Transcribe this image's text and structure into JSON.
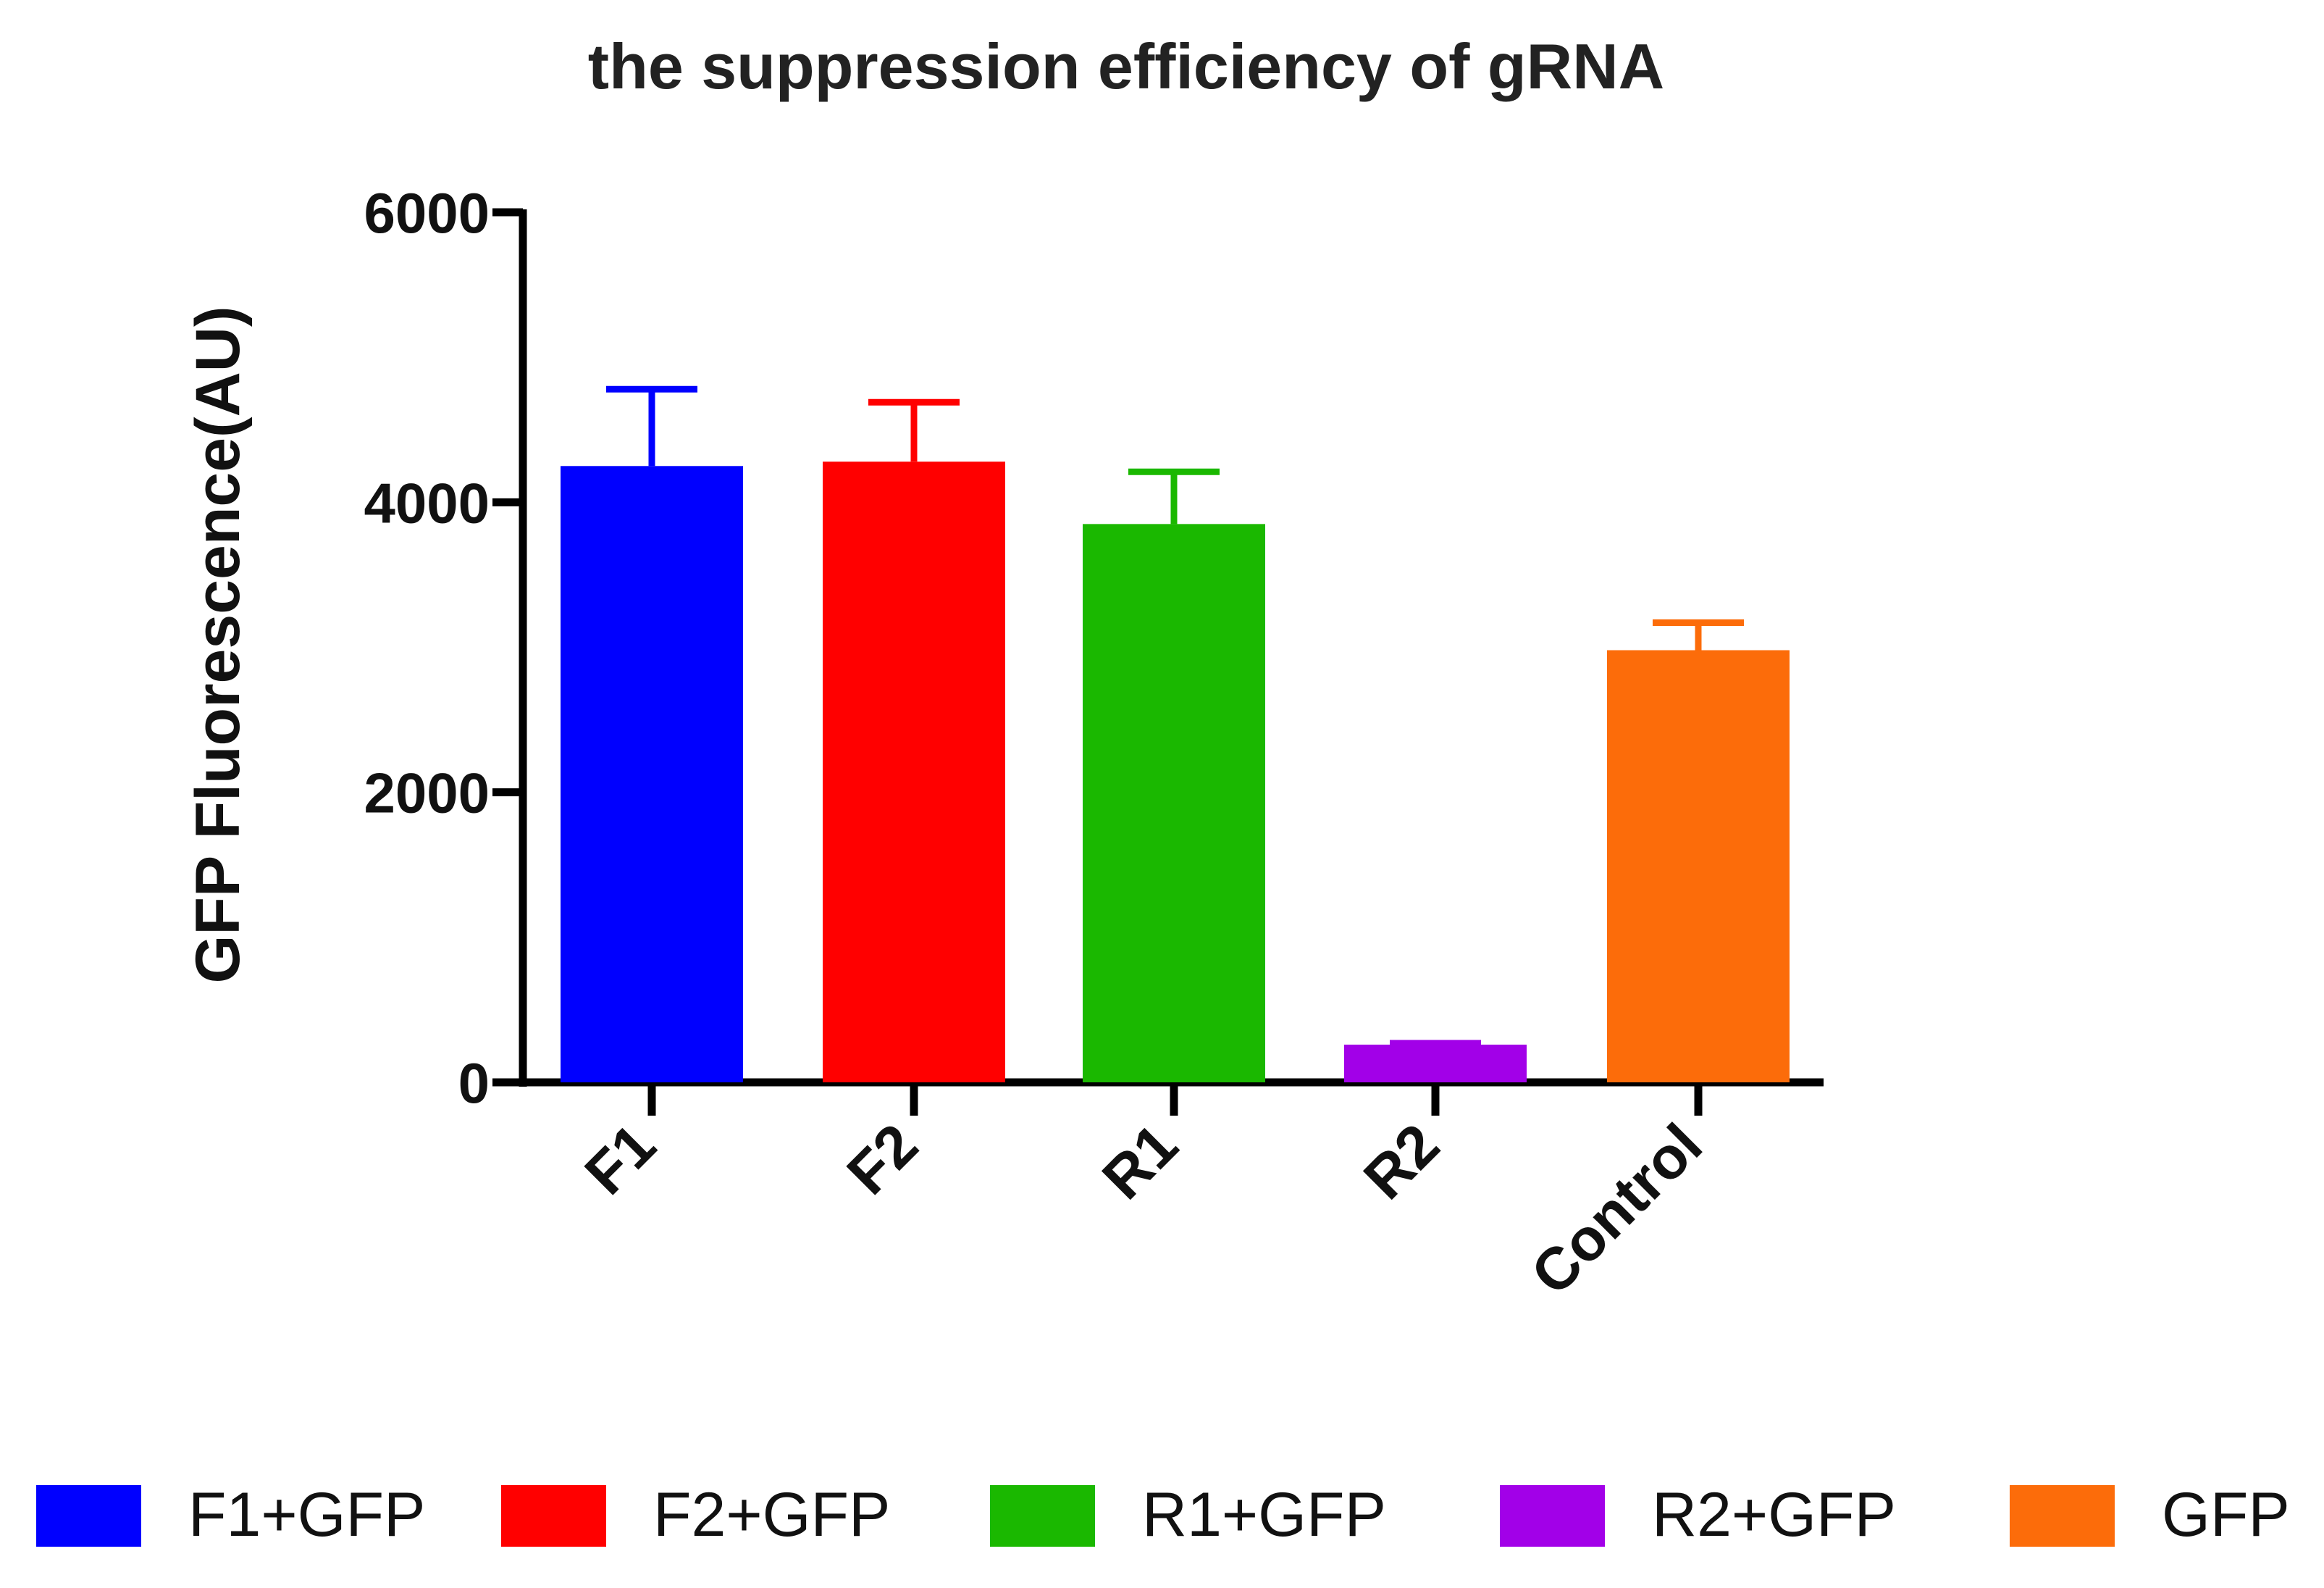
{
  "chart_data": {
    "type": "bar",
    "title": "the suppression efficiency of gRNA",
    "ylabel": "GFP Fluorescence(AU)",
    "xlabel": "",
    "ylim": [
      0,
      6000
    ],
    "yticks": [
      0,
      2000,
      4000,
      6000
    ],
    "categories": [
      "F1",
      "F2",
      "R1",
      "R2",
      "Control"
    ],
    "values": [
      4250,
      4280,
      3850,
      260,
      2980
    ],
    "error_upper": [
      4780,
      4690,
      4210,
      270,
      3170
    ],
    "colors": [
      "#0000ff",
      "#ff0000",
      "#1ab800",
      "#a200e8",
      "#fc6c0a"
    ],
    "legend": {
      "position": "bottom",
      "entries": [
        {
          "label": "F1+GFP",
          "color": "#0000ff"
        },
        {
          "label": "F2+GFP",
          "color": "#ff0000"
        },
        {
          "label": "R1+GFP",
          "color": "#1ab800"
        },
        {
          "label": "R2+GFP",
          "color": "#a200e8"
        },
        {
          "label": "GFP",
          "color": "#fc6c0a"
        }
      ]
    }
  }
}
